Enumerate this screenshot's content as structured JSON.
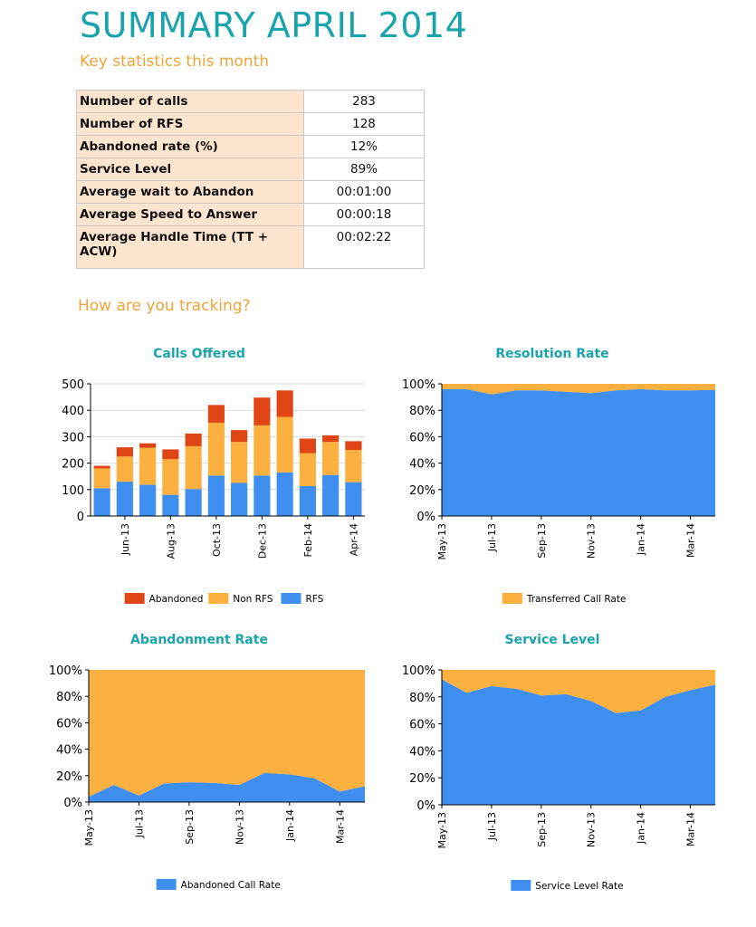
{
  "header": {
    "title": "SUMMARY APRIL 2014",
    "subtitle": "Key statistics this month",
    "section": "How are you tracking?"
  },
  "stats": [
    {
      "label": "Number of calls",
      "value": "283"
    },
    {
      "label": "Number of RFS",
      "value": "128"
    },
    {
      "label": "Abandoned rate (%)",
      "value": "12%"
    },
    {
      "label": "Service Level",
      "value": "89%"
    },
    {
      "label": "Average wait to Abandon",
      "value": "00:01:00"
    },
    {
      "label": "Average Speed to Answer",
      "value": "00:00:18"
    },
    {
      "label": "Average Handle Time (TT + ACW)",
      "value": "00:02:22"
    }
  ],
  "colors": {
    "blue": "#3f8ff0",
    "orange": "#fbb040",
    "red": "#e04516",
    "title": "#1aa3ad",
    "accent": "#f0a33a"
  },
  "chart_data": [
    {
      "type": "bar",
      "stacked": true,
      "title": "Calls Offered",
      "categories": [
        "May-13",
        "Jun-13",
        "Jul-13",
        "Aug-13",
        "Sep-13",
        "Oct-13",
        "Nov-13",
        "Dec-13",
        "Jan-14",
        "Feb-14",
        "Mar-14",
        "Apr-14"
      ],
      "tick_labels": [
        "Jun-13",
        "Aug-13",
        "Oct-13",
        "Dec-13",
        "Feb-14",
        "Apr-14"
      ],
      "yticks": [
        "0",
        "100",
        "200",
        "300",
        "400",
        "500"
      ],
      "ylim": [
        0,
        500
      ],
      "grid": true,
      "legend": "bottom",
      "series": [
        {
          "name": "RFS",
          "color": "#3f8ff0",
          "values": [
            105,
            130,
            118,
            80,
            102,
            153,
            125,
            153,
            165,
            113,
            155,
            128
          ]
        },
        {
          "name": "Non RFS",
          "color": "#fbb040",
          "values": [
            75,
            95,
            140,
            135,
            162,
            200,
            155,
            190,
            210,
            125,
            125,
            122
          ]
        },
        {
          "name": "Abandoned",
          "color": "#e04516",
          "values": [
            10,
            35,
            17,
            37,
            48,
            67,
            45,
            105,
            100,
            55,
            25,
            33
          ]
        }
      ]
    },
    {
      "type": "area",
      "stacked": true,
      "title": "Resolution Rate",
      "x": [
        "May-13",
        "Jun-13",
        "Jul-13",
        "Aug-13",
        "Sep-13",
        "Oct-13",
        "Nov-13",
        "Dec-13",
        "Jan-14",
        "Feb-14",
        "Mar-14",
        "Apr-14"
      ],
      "tick_labels": [
        "May-13",
        "Jul-13",
        "Sep-13",
        "Nov-13",
        "Jan-14",
        "Mar-14"
      ],
      "yticks": [
        "0%",
        "20%",
        "40%",
        "60%",
        "80%",
        "100%"
      ],
      "ylim": [
        0,
        100
      ],
      "legend": "bottom",
      "series": [
        {
          "color": "#3f8ff0",
          "values": [
            96,
            96,
            92,
            95,
            95,
            94,
            93,
            95,
            96,
            95,
            95,
            95.5
          ]
        },
        {
          "name": "Transferred Call Rate",
          "color": "#fbb040",
          "values": [
            4,
            4,
            8,
            5,
            5,
            6,
            7,
            5,
            4,
            5,
            5,
            4.5
          ]
        }
      ]
    },
    {
      "type": "area",
      "stacked": true,
      "title": "Abandonment Rate",
      "x": [
        "May-13",
        "Jun-13",
        "Jul-13",
        "Aug-13",
        "Sep-13",
        "Oct-13",
        "Nov-13",
        "Dec-13",
        "Jan-14",
        "Feb-14",
        "Mar-14",
        "Apr-14"
      ],
      "tick_labels": [
        "May-13",
        "Jul-13",
        "Sep-13",
        "Nov-13",
        "Jan-14",
        "Mar-14"
      ],
      "yticks": [
        "0%",
        "20%",
        "40%",
        "60%",
        "80%",
        "100%"
      ],
      "ylim": [
        0,
        100
      ],
      "legend": "bottom",
      "series": [
        {
          "name": "Abandoned Call Rate",
          "color": "#3f8ff0",
          "values": [
            4,
            13,
            5,
            14,
            15,
            14.5,
            13,
            22,
            21,
            18,
            8,
            12
          ]
        },
        {
          "color": "#fbb040",
          "values": [
            96,
            87,
            95,
            86,
            85,
            85.5,
            87,
            78,
            79,
            82,
            92,
            88
          ]
        }
      ]
    },
    {
      "type": "area",
      "stacked": true,
      "title": "Service Level",
      "x": [
        "May-13",
        "Jun-13",
        "Jul-13",
        "Aug-13",
        "Sep-13",
        "Oct-13",
        "Nov-13",
        "Dec-13",
        "Jan-14",
        "Feb-14",
        "Mar-14",
        "Apr-14"
      ],
      "tick_labels": [
        "May-13",
        "Jul-13",
        "Sep-13",
        "Nov-13",
        "Jan-14",
        "Mar-14"
      ],
      "yticks": [
        "0%",
        "20%",
        "40%",
        "60%",
        "80%",
        "100%"
      ],
      "ylim": [
        0,
        100
      ],
      "legend": "bottom",
      "series": [
        {
          "name": "Service Level Rate",
          "color": "#3f8ff0",
          "values": [
            93,
            83,
            88,
            86,
            81,
            82,
            77,
            68,
            70,
            80,
            85,
            89
          ]
        },
        {
          "color": "#fbb040",
          "values": [
            7,
            17,
            12,
            14,
            19,
            18,
            23,
            32,
            30,
            20,
            15,
            11
          ]
        }
      ]
    }
  ]
}
